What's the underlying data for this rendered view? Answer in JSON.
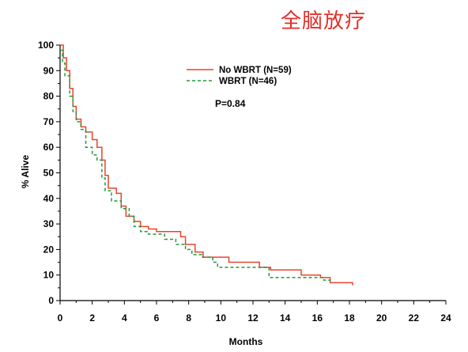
{
  "chart_data": {
    "type": "line",
    "title": "全脑放疗",
    "xlabel": "Months",
    "ylabel": "% Alive",
    "xlim": [
      0,
      24
    ],
    "ylim": [
      0,
      100
    ],
    "x_ticks": [
      0,
      2,
      4,
      6,
      8,
      10,
      12,
      14,
      16,
      18,
      20,
      22,
      24
    ],
    "y_ticks": [
      0,
      10,
      20,
      30,
      40,
      50,
      60,
      70,
      80,
      90,
      100
    ],
    "annotation": "P=0.84",
    "legend_position": "top-center",
    "series": [
      {
        "name": "No WBRT (N=59)",
        "color": "#e8452c",
        "style": "solid",
        "step": "post",
        "points": [
          [
            0,
            100
          ],
          [
            0.2,
            95
          ],
          [
            0.4,
            90
          ],
          [
            0.6,
            83
          ],
          [
            0.8,
            76
          ],
          [
            1.0,
            71
          ],
          [
            1.3,
            68
          ],
          [
            1.6,
            66
          ],
          [
            2.0,
            63
          ],
          [
            2.3,
            60
          ],
          [
            2.6,
            55
          ],
          [
            2.8,
            49
          ],
          [
            3.0,
            44
          ],
          [
            3.5,
            42
          ],
          [
            3.8,
            37
          ],
          [
            4.1,
            33
          ],
          [
            4.6,
            31
          ],
          [
            5.0,
            29
          ],
          [
            5.5,
            28
          ],
          [
            6.0,
            27
          ],
          [
            7.5,
            25
          ],
          [
            7.8,
            22
          ],
          [
            8.4,
            19
          ],
          [
            8.9,
            17
          ],
          [
            10.5,
            15
          ],
          [
            12.4,
            13
          ],
          [
            13.1,
            12
          ],
          [
            15.0,
            10
          ],
          [
            16.2,
            9
          ],
          [
            16.8,
            7
          ],
          [
            18.2,
            6
          ]
        ]
      },
      {
        "name": "WBRT (N=46)",
        "color": "#1f9a3c",
        "style": "dashed",
        "step": "post",
        "points": [
          [
            0,
            98
          ],
          [
            0.15,
            93
          ],
          [
            0.3,
            88
          ],
          [
            0.6,
            80
          ],
          [
            0.8,
            74
          ],
          [
            1.0,
            70
          ],
          [
            1.3,
            67
          ],
          [
            1.6,
            60
          ],
          [
            2.0,
            57
          ],
          [
            2.3,
            55
          ],
          [
            2.6,
            48
          ],
          [
            2.8,
            43
          ],
          [
            3.2,
            39
          ],
          [
            3.8,
            36
          ],
          [
            4.3,
            33
          ],
          [
            4.6,
            29
          ],
          [
            5.0,
            27
          ],
          [
            5.5,
            26
          ],
          [
            6.5,
            24
          ],
          [
            7.2,
            22
          ],
          [
            7.8,
            20
          ],
          [
            8.2,
            18
          ],
          [
            8.8,
            17
          ],
          [
            9.5,
            15
          ],
          [
            9.8,
            13
          ],
          [
            12.0,
            13
          ],
          [
            13.0,
            9
          ],
          [
            15.0,
            9
          ],
          [
            16.4,
            8
          ],
          [
            16.8,
            7
          ]
        ]
      }
    ]
  }
}
